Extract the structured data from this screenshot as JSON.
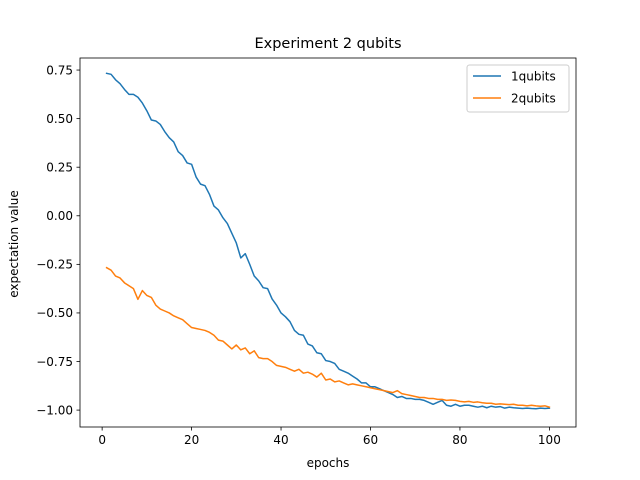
{
  "chart_data": {
    "type": "line",
    "title": "Experiment 2 qubits",
    "xlabel": "epochs",
    "ylabel": "expectation value",
    "xlim": [
      -4.95,
      105.95
    ],
    "ylim": [
      -1.087,
      0.812
    ],
    "xticks": [
      0,
      20,
      40,
      60,
      80,
      100
    ],
    "yticks": [
      0.75,
      0.5,
      0.25,
      0.0,
      -0.25,
      -0.5,
      -0.75,
      -1.0
    ],
    "xtick_labels": [
      "0",
      "20",
      "40",
      "60",
      "80",
      "100"
    ],
    "ytick_labels": [
      "0.75",
      "0.50",
      "0.25",
      "0.00",
      "−0.25",
      "−0.50",
      "−0.75",
      "−1.00"
    ],
    "grid": false,
    "legend_position": "top-right",
    "colors": {
      "series1": "#1f77b4",
      "series2": "#ff7f0e"
    },
    "series": [
      {
        "name": "1qubits",
        "x_start": 1,
        "values": [
          0.733,
          0.728,
          0.7,
          0.68,
          0.65,
          0.625,
          0.625,
          0.61,
          0.58,
          0.54,
          0.493,
          0.488,
          0.47,
          0.433,
          0.402,
          0.38,
          0.33,
          0.31,
          0.272,
          0.265,
          0.2,
          0.163,
          0.155,
          0.11,
          0.05,
          0.03,
          -0.01,
          -0.04,
          -0.09,
          -0.14,
          -0.217,
          -0.195,
          -0.25,
          -0.31,
          -0.335,
          -0.37,
          -0.375,
          -0.428,
          -0.46,
          -0.5,
          -0.52,
          -0.545,
          -0.59,
          -0.61,
          -0.615,
          -0.66,
          -0.67,
          -0.705,
          -0.71,
          -0.745,
          -0.75,
          -0.76,
          -0.79,
          -0.8,
          -0.81,
          -0.825,
          -0.84,
          -0.86,
          -0.86,
          -0.88,
          -0.88,
          -0.89,
          -0.9,
          -0.91,
          -0.92,
          -0.935,
          -0.93,
          -0.94,
          -0.94,
          -0.945,
          -0.945,
          -0.95,
          -0.96,
          -0.97,
          -0.96,
          -0.95,
          -0.975,
          -0.98,
          -0.97,
          -0.98,
          -0.975,
          -0.975,
          -0.98,
          -0.985,
          -0.98,
          -0.988,
          -0.98,
          -0.985,
          -0.982,
          -0.99,
          -0.985,
          -0.988,
          -0.99,
          -0.992,
          -0.99,
          -0.992,
          -0.993,
          -0.99,
          -0.992,
          -0.99
        ]
      },
      {
        "name": "2qubits",
        "x_start": 1,
        "values": [
          -0.267,
          -0.28,
          -0.31,
          -0.32,
          -0.345,
          -0.36,
          -0.375,
          -0.43,
          -0.385,
          -0.41,
          -0.42,
          -0.46,
          -0.48,
          -0.49,
          -0.5,
          -0.515,
          -0.525,
          -0.535,
          -0.555,
          -0.575,
          -0.58,
          -0.585,
          -0.59,
          -0.6,
          -0.615,
          -0.64,
          -0.645,
          -0.665,
          -0.685,
          -0.665,
          -0.69,
          -0.68,
          -0.71,
          -0.695,
          -0.73,
          -0.735,
          -0.735,
          -0.75,
          -0.77,
          -0.775,
          -0.78,
          -0.79,
          -0.8,
          -0.79,
          -0.81,
          -0.805,
          -0.815,
          -0.83,
          -0.81,
          -0.845,
          -0.84,
          -0.855,
          -0.85,
          -0.86,
          -0.87,
          -0.865,
          -0.87,
          -0.875,
          -0.88,
          -0.885,
          -0.89,
          -0.895,
          -0.9,
          -0.905,
          -0.91,
          -0.9,
          -0.915,
          -0.92,
          -0.925,
          -0.93,
          -0.935,
          -0.935,
          -0.94,
          -0.94,
          -0.945,
          -0.945,
          -0.95,
          -0.948,
          -0.95,
          -0.955,
          -0.958,
          -0.955,
          -0.96,
          -0.958,
          -0.962,
          -0.965,
          -0.965,
          -0.97,
          -0.968,
          -0.97,
          -0.972,
          -0.97,
          -0.975,
          -0.975,
          -0.978,
          -0.975,
          -0.978,
          -0.98,
          -0.978,
          -0.985
        ]
      }
    ]
  }
}
